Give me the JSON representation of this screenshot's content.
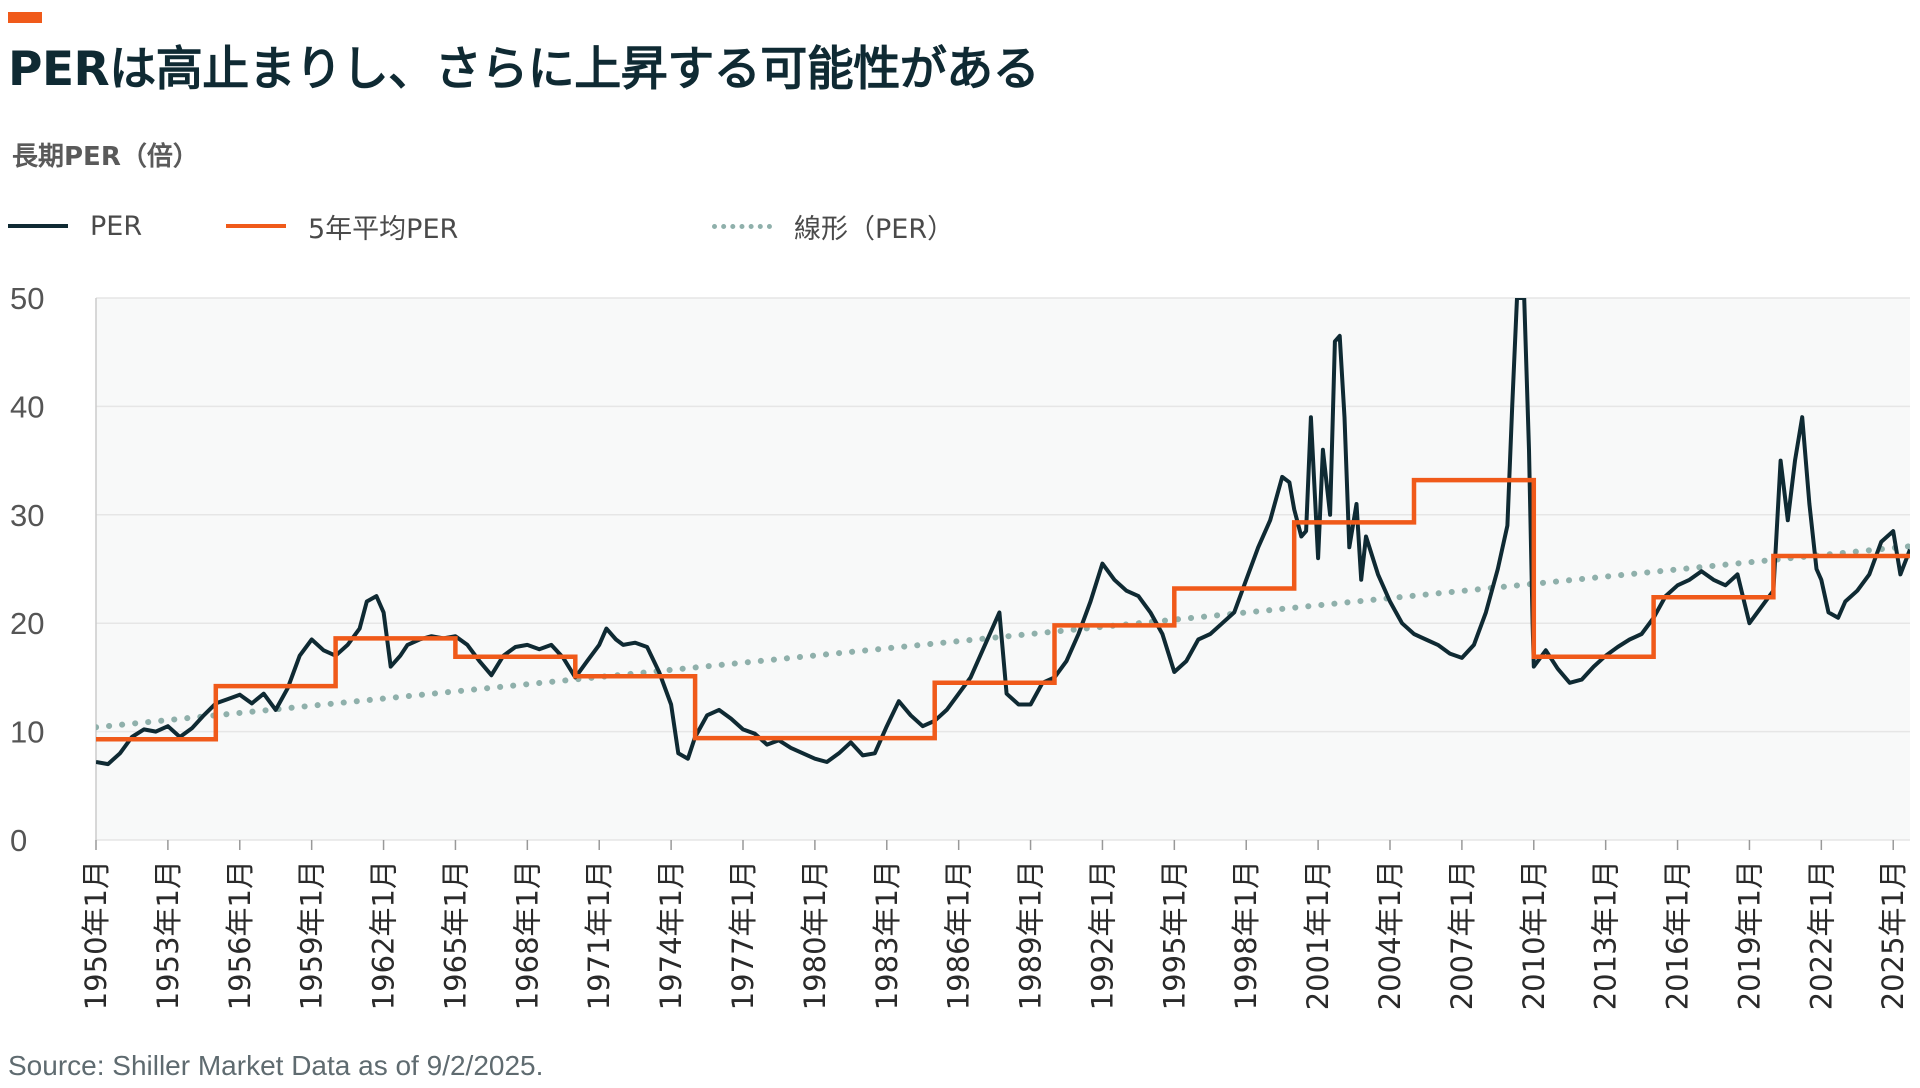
{
  "colors": {
    "accent": "#f05a1a",
    "per": "#0f2a33",
    "avg": "#f05a1a",
    "trend": "#8fb0ab",
    "grid": "#e6e6e6",
    "plot_bg": "#f8f9f9"
  },
  "header": {
    "title": "PERは高止まりし、さらに上昇する可能性がある",
    "subtitle": "長期PER（倍）"
  },
  "legend": [
    {
      "label": "PER",
      "style": "solid",
      "color": "#0f2a33"
    },
    {
      "label": "5年平均PER",
      "style": "solid",
      "color": "#f05a1a"
    },
    {
      "label": "線形（PER）",
      "style": "dotted",
      "color": "#8fb0ab"
    }
  ],
  "source": "Source: Shiller Market Data as of 9/2/2025.",
  "chart_data": {
    "type": "line",
    "title": "PERは高止まりし、さらに上昇する可能性がある",
    "ylabel": "長期PER（倍）",
    "ylim": [
      0,
      50
    ],
    "xlim": [
      1950.0,
      2025.7
    ],
    "yticks": [
      0,
      10,
      20,
      30,
      40,
      50
    ],
    "xticks": [
      "1950年1月",
      "1953年1月",
      "1956年1月",
      "1959年1月",
      "1962年1月",
      "1965年1月",
      "1968年1月",
      "1971年1月",
      "1974年1月",
      "1977年1月",
      "1980年1月",
      "1983年1月",
      "1986年1月",
      "1989年1月",
      "1992年1月",
      "1995年1月",
      "1998年1月",
      "2001年1月",
      "2004年1月",
      "2007年1月",
      "2010年1月",
      "2013年1月",
      "2016年1月",
      "2019年1月",
      "2022年1月",
      "2025年1月"
    ],
    "series": [
      {
        "name": "PER",
        "style": "line",
        "points": [
          [
            1950.0,
            7.2
          ],
          [
            1950.5,
            7.0
          ],
          [
            1951.0,
            8.0
          ],
          [
            1951.5,
            9.5
          ],
          [
            1952.0,
            10.2
          ],
          [
            1952.5,
            10.0
          ],
          [
            1953.0,
            10.5
          ],
          [
            1953.5,
            9.5
          ],
          [
            1954.0,
            10.3
          ],
          [
            1954.5,
            11.5
          ],
          [
            1955.0,
            12.6
          ],
          [
            1955.5,
            13.0
          ],
          [
            1956.0,
            13.4
          ],
          [
            1956.5,
            12.6
          ],
          [
            1957.0,
            13.5
          ],
          [
            1957.5,
            12.0
          ],
          [
            1958.0,
            14.0
          ],
          [
            1958.5,
            17.0
          ],
          [
            1959.0,
            18.5
          ],
          [
            1959.5,
            17.5
          ],
          [
            1960.0,
            17.0
          ],
          [
            1960.5,
            18.0
          ],
          [
            1961.0,
            19.5
          ],
          [
            1961.3,
            22.0
          ],
          [
            1961.7,
            22.5
          ],
          [
            1962.0,
            21.0
          ],
          [
            1962.3,
            16.0
          ],
          [
            1962.7,
            17.0
          ],
          [
            1963.0,
            18.0
          ],
          [
            1963.5,
            18.5
          ],
          [
            1964.0,
            18.8
          ],
          [
            1964.5,
            18.6
          ],
          [
            1965.0,
            18.8
          ],
          [
            1965.5,
            18.0
          ],
          [
            1966.0,
            16.5
          ],
          [
            1966.5,
            15.2
          ],
          [
            1967.0,
            17.0
          ],
          [
            1967.5,
            17.8
          ],
          [
            1968.0,
            18.0
          ],
          [
            1968.5,
            17.6
          ],
          [
            1969.0,
            18.0
          ],
          [
            1969.5,
            16.8
          ],
          [
            1970.0,
            15.0
          ],
          [
            1970.5,
            16.5
          ],
          [
            1971.0,
            18.0
          ],
          [
            1971.3,
            19.5
          ],
          [
            1971.7,
            18.5
          ],
          [
            1972.0,
            18.0
          ],
          [
            1972.5,
            18.2
          ],
          [
            1973.0,
            17.8
          ],
          [
            1973.5,
            15.5
          ],
          [
            1974.0,
            12.5
          ],
          [
            1974.3,
            8.0
          ],
          [
            1974.7,
            7.5
          ],
          [
            1975.0,
            9.5
          ],
          [
            1975.5,
            11.5
          ],
          [
            1976.0,
            12.0
          ],
          [
            1976.5,
            11.2
          ],
          [
            1977.0,
            10.2
          ],
          [
            1977.5,
            9.8
          ],
          [
            1978.0,
            8.8
          ],
          [
            1978.5,
            9.2
          ],
          [
            1979.0,
            8.5
          ],
          [
            1979.5,
            8.0
          ],
          [
            1980.0,
            7.5
          ],
          [
            1980.5,
            7.2
          ],
          [
            1981.0,
            8.0
          ],
          [
            1981.5,
            9.0
          ],
          [
            1982.0,
            7.8
          ],
          [
            1982.5,
            8.0
          ],
          [
            1983.0,
            10.5
          ],
          [
            1983.5,
            12.8
          ],
          [
            1984.0,
            11.5
          ],
          [
            1984.5,
            10.5
          ],
          [
            1985.0,
            11.0
          ],
          [
            1985.5,
            12.0
          ],
          [
            1986.0,
            13.5
          ],
          [
            1986.5,
            15.0
          ],
          [
            1987.0,
            17.5
          ],
          [
            1987.7,
            21.0
          ],
          [
            1988.0,
            13.5
          ],
          [
            1988.5,
            12.5
          ],
          [
            1989.0,
            12.5
          ],
          [
            1989.5,
            14.5
          ],
          [
            1990.0,
            15.0
          ],
          [
            1990.5,
            16.5
          ],
          [
            1991.0,
            19.0
          ],
          [
            1991.5,
            22.0
          ],
          [
            1992.0,
            25.5
          ],
          [
            1992.5,
            24.0
          ],
          [
            1993.0,
            23.0
          ],
          [
            1993.5,
            22.5
          ],
          [
            1994.0,
            21.0
          ],
          [
            1994.5,
            19.0
          ],
          [
            1995.0,
            15.5
          ],
          [
            1995.5,
            16.5
          ],
          [
            1996.0,
            18.5
          ],
          [
            1996.5,
            19.0
          ],
          [
            1997.0,
            20.0
          ],
          [
            1997.5,
            21.0
          ],
          [
            1998.0,
            24.0
          ],
          [
            1998.5,
            27.0
          ],
          [
            1999.0,
            29.5
          ],
          [
            1999.5,
            33.5
          ],
          [
            1999.8,
            33.0
          ],
          [
            2000.0,
            30.5
          ],
          [
            2000.3,
            28.0
          ],
          [
            2000.5,
            28.5
          ],
          [
            2000.7,
            39.0
          ],
          [
            2001.0,
            26.0
          ],
          [
            2001.2,
            36.0
          ],
          [
            2001.5,
            30.0
          ],
          [
            2001.7,
            46.0
          ],
          [
            2001.9,
            46.5
          ],
          [
            2002.1,
            39.0
          ],
          [
            2002.3,
            27.0
          ],
          [
            2002.6,
            31.0
          ],
          [
            2002.8,
            24.0
          ],
          [
            2003.0,
            28.0
          ],
          [
            2003.5,
            24.5
          ],
          [
            2004.0,
            22.0
          ],
          [
            2004.5,
            20.0
          ],
          [
            2005.0,
            19.0
          ],
          [
            2005.5,
            18.5
          ],
          [
            2006.0,
            18.0
          ],
          [
            2006.5,
            17.2
          ],
          [
            2007.0,
            16.8
          ],
          [
            2007.5,
            18.0
          ],
          [
            2008.0,
            21.0
          ],
          [
            2008.5,
            25.0
          ],
          [
            2008.9,
            29.0
          ],
          [
            2009.1,
            40.0
          ],
          [
            2009.3,
            50.0
          ],
          [
            2009.6,
            50.0
          ],
          [
            2009.8,
            36.0
          ],
          [
            2009.95,
            20.0
          ],
          [
            2010.0,
            16.0
          ],
          [
            2010.5,
            17.5
          ],
          [
            2011.0,
            15.8
          ],
          [
            2011.5,
            14.5
          ],
          [
            2012.0,
            14.8
          ],
          [
            2012.5,
            16.0
          ],
          [
            2013.0,
            17.0
          ],
          [
            2013.5,
            17.8
          ],
          [
            2014.0,
            18.5
          ],
          [
            2014.5,
            19.0
          ],
          [
            2015.0,
            20.5
          ],
          [
            2015.5,
            22.5
          ],
          [
            2016.0,
            23.5
          ],
          [
            2016.5,
            24.0
          ],
          [
            2017.0,
            24.8
          ],
          [
            2017.5,
            24.0
          ],
          [
            2018.0,
            23.5
          ],
          [
            2018.5,
            24.5
          ],
          [
            2019.0,
            20.0
          ],
          [
            2019.5,
            21.5
          ],
          [
            2020.0,
            23.0
          ],
          [
            2020.3,
            35.0
          ],
          [
            2020.6,
            29.5
          ],
          [
            2020.9,
            35.0
          ],
          [
            2021.2,
            39.0
          ],
          [
            2021.5,
            31.0
          ],
          [
            2021.8,
            25.0
          ],
          [
            2022.0,
            24.0
          ],
          [
            2022.3,
            21.0
          ],
          [
            2022.7,
            20.5
          ],
          [
            2023.0,
            22.0
          ],
          [
            2023.5,
            23.0
          ],
          [
            2024.0,
            24.5
          ],
          [
            2024.5,
            27.5
          ],
          [
            2025.0,
            28.5
          ],
          [
            2025.3,
            24.5
          ],
          [
            2025.7,
            26.8
          ]
        ]
      },
      {
        "name": "5年平均PER",
        "style": "step",
        "segments": [
          {
            "from": 1950.0,
            "to": 1955.0,
            "value": 9.3
          },
          {
            "from": 1955.0,
            "to": 1960.0,
            "value": 14.2
          },
          {
            "from": 1960.0,
            "to": 1965.0,
            "value": 18.6
          },
          {
            "from": 1965.0,
            "to": 1970.0,
            "value": 16.9
          },
          {
            "from": 1970.0,
            "to": 1975.0,
            "value": 15.1
          },
          {
            "from": 1975.0,
            "to": 1985.0,
            "value": 9.4
          },
          {
            "from": 1985.0,
            "to": 1990.0,
            "value": 14.5
          },
          {
            "from": 1990.0,
            "to": 1995.0,
            "value": 19.8
          },
          {
            "from": 1995.0,
            "to": 2000.0,
            "value": 23.2
          },
          {
            "from": 2000.0,
            "to": 2005.0,
            "value": 29.3
          },
          {
            "from": 2005.0,
            "to": 2010.0,
            "value": 33.2
          },
          {
            "from": 2010.0,
            "to": 2015.0,
            "value": 16.9
          },
          {
            "from": 2015.0,
            "to": 2020.0,
            "value": 22.4
          },
          {
            "from": 2020.0,
            "to": 2025.7,
            "value": 26.2
          }
        ]
      },
      {
        "name": "線形（PER）",
        "style": "dotted",
        "points": [
          [
            1950.0,
            10.4
          ],
          [
            2025.7,
            27.1
          ]
        ]
      }
    ]
  }
}
